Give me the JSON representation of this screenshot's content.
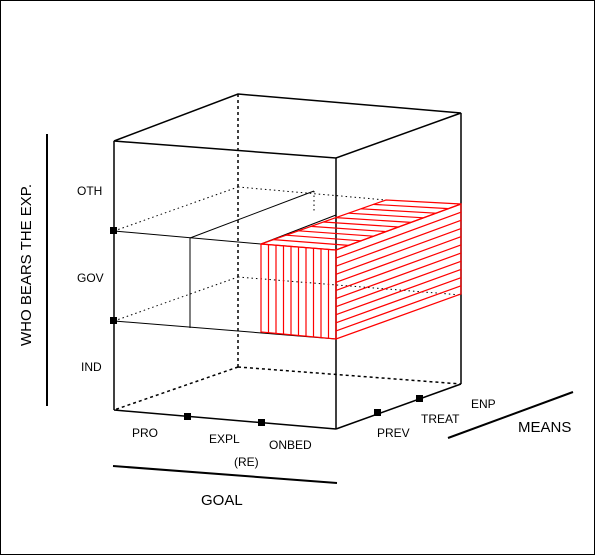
{
  "diagram": {
    "vertical_axis": {
      "title": "WHO BEARS THE EXP.",
      "levels": [
        "OTH",
        "GOV",
        "IND"
      ]
    },
    "goal_axis": {
      "title": "GOAL",
      "levels": [
        "PRO",
        "EXPL",
        "ONBED"
      ],
      "sublabel": "(RE)"
    },
    "means_axis": {
      "title": "MEANS",
      "levels": [
        "PREV",
        "TREAT",
        "ENP"
      ]
    },
    "colors": {
      "line": "#000000",
      "highlight": "#ff0000",
      "background": "#ffffff"
    }
  }
}
